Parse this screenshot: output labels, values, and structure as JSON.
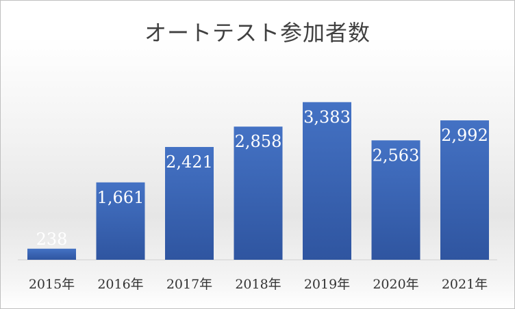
{
  "chart_data": {
    "type": "bar",
    "title": "オートテスト参加者数",
    "categories": [
      "2015年",
      "2016年",
      "2017年",
      "2018年",
      "2019年",
      "2020年",
      "2021年"
    ],
    "values": [
      238,
      1661,
      2421,
      2858,
      3383,
      2563,
      2992
    ],
    "value_labels": [
      "238",
      "1,661",
      "2,421",
      "2,858",
      "3,383",
      "2,563",
      "2,992"
    ],
    "ylim": [
      0,
      3800
    ],
    "grid": false,
    "legend": "none",
    "xlabel": "",
    "ylabel": "",
    "bar_color_top": "#4472c4",
    "bar_color_bottom": "#2f55a0"
  }
}
